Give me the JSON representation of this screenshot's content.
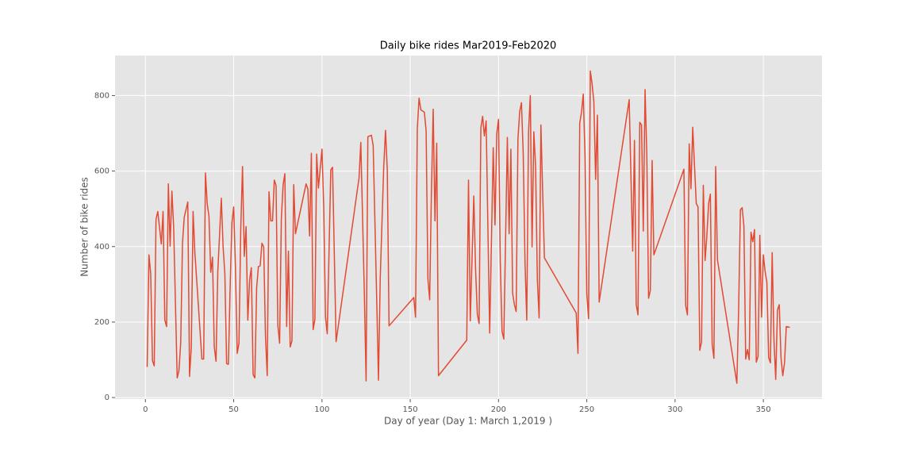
{
  "chart_data": {
    "type": "line",
    "title": "Daily bike rides Mar2019-Feb2020",
    "xlabel": "Day of year (Day 1: March 1,2019 )",
    "ylabel": "Number of bike rides",
    "color": "#e24a33",
    "grid": true,
    "x": [
      1,
      2,
      3,
      4,
      5,
      6,
      7,
      9,
      10,
      11,
      12,
      13,
      14,
      15,
      16,
      18,
      19,
      20,
      21,
      22,
      24,
      25,
      26,
      27,
      28,
      32,
      33,
      34,
      35,
      36,
      37,
      38,
      39,
      40,
      41,
      43,
      44,
      45,
      46,
      47,
      48,
      49,
      50,
      51,
      52,
      53,
      54,
      55,
      56,
      57,
      58,
      59,
      60,
      61,
      62,
      63,
      64,
      65,
      66,
      67,
      68,
      69,
      70,
      71,
      72,
      73,
      74,
      75,
      76,
      77,
      78,
      79,
      80,
      81,
      82,
      83,
      84,
      85,
      88,
      91,
      92,
      93,
      94,
      95,
      96,
      97,
      98,
      100,
      101,
      102,
      103,
      105,
      106,
      108,
      121,
      122,
      124,
      125,
      126,
      128,
      129,
      131,
      132,
      133,
      135,
      136,
      137,
      138,
      152,
      153,
      154,
      155,
      156,
      158,
      159,
      160,
      161,
      162,
      163,
      164,
      165,
      166,
      182,
      183,
      184,
      186,
      187,
      188,
      189,
      190,
      191,
      192,
      193,
      194,
      195,
      197,
      198,
      199,
      200,
      201,
      202,
      203,
      205,
      206,
      207,
      208,
      209,
      210,
      211,
      212,
      213,
      214,
      215,
      216,
      217,
      218,
      219,
      220,
      221,
      222,
      223,
      224,
      226,
      244,
      245,
      246,
      247,
      248,
      249,
      250,
      251,
      252,
      253,
      254,
      255,
      256,
      257,
      274,
      276,
      277,
      278,
      279,
      280,
      281,
      282,
      283,
      284,
      285,
      286,
      287,
      288,
      305,
      306,
      307,
      308,
      309,
      310,
      312,
      313,
      314,
      315,
      316,
      317,
      318,
      319,
      320,
      321,
      322,
      323,
      324,
      335,
      336,
      337,
      338,
      339,
      340,
      341,
      342,
      343,
      344,
      345,
      346,
      347,
      348,
      349,
      350,
      351,
      352,
      353,
      354,
      355,
      356,
      357,
      358,
      359,
      360,
      361,
      362,
      363,
      365
    ],
    "values": [
      81,
      378,
      328,
      98,
      84,
      472,
      493,
      407,
      493,
      205,
      188,
      566,
      401,
      547,
      451,
      52,
      71,
      146,
      409,
      478,
      518,
      56,
      134,
      493,
      386,
      102,
      102,
      595,
      514,
      480,
      332,
      372,
      134,
      96,
      334,
      528,
      399,
      328,
      90,
      88,
      294,
      463,
      505,
      344,
      117,
      144,
      445,
      612,
      374,
      453,
      205,
      311,
      344,
      61,
      52,
      290,
      347,
      349,
      409,
      399,
      163,
      58,
      545,
      468,
      468,
      576,
      562,
      192,
      144,
      474,
      564,
      593,
      188,
      388,
      134,
      150,
      564,
      434,
      500,
      566,
      553,
      428,
      647,
      180,
      207,
      645,
      555,
      658,
      505,
      213,
      169,
      603,
      610,
      148,
      582,
      676,
      276,
      44,
      691,
      695,
      668,
      261,
      46,
      315,
      614,
      708,
      603,
      190,
      265,
      213,
      712,
      793,
      762,
      756,
      706,
      315,
      259,
      547,
      764,
      468,
      674,
      58,
      152,
      576,
      203,
      534,
      340,
      221,
      196,
      714,
      745,
      693,
      733,
      443,
      171,
      662,
      457,
      699,
      737,
      359,
      175,
      155,
      689,
      434,
      658,
      276,
      246,
      228,
      685,
      758,
      781,
      645,
      359,
      205,
      704,
      800,
      399,
      704,
      612,
      311,
      211,
      722,
      370,
      224,
      117,
      727,
      756,
      804,
      639,
      276,
      209,
      865,
      831,
      784,
      578,
      748,
      253,
      789,
      388,
      681,
      246,
      219,
      729,
      722,
      441,
      816,
      643,
      263,
      284,
      628,
      378,
      605,
      244,
      219,
      672,
      553,
      716,
      514,
      505,
      125,
      148,
      562,
      363,
      428,
      514,
      539,
      142,
      104,
      612,
      365,
      38,
      234,
      497,
      503,
      453,
      102,
      127,
      100,
      438,
      413,
      445,
      94,
      109,
      430,
      213,
      378,
      334,
      305,
      106,
      92,
      384,
      154,
      48,
      232,
      246,
      106,
      58,
      92,
      188,
      186
    ],
    "xlim": [
      -17.2,
      383.2
    ],
    "ylim": [
      -4,
      906
    ],
    "xticks": [
      0,
      50,
      100,
      150,
      200,
      250,
      300,
      350
    ],
    "yticks": [
      0,
      200,
      400,
      600,
      800
    ]
  }
}
